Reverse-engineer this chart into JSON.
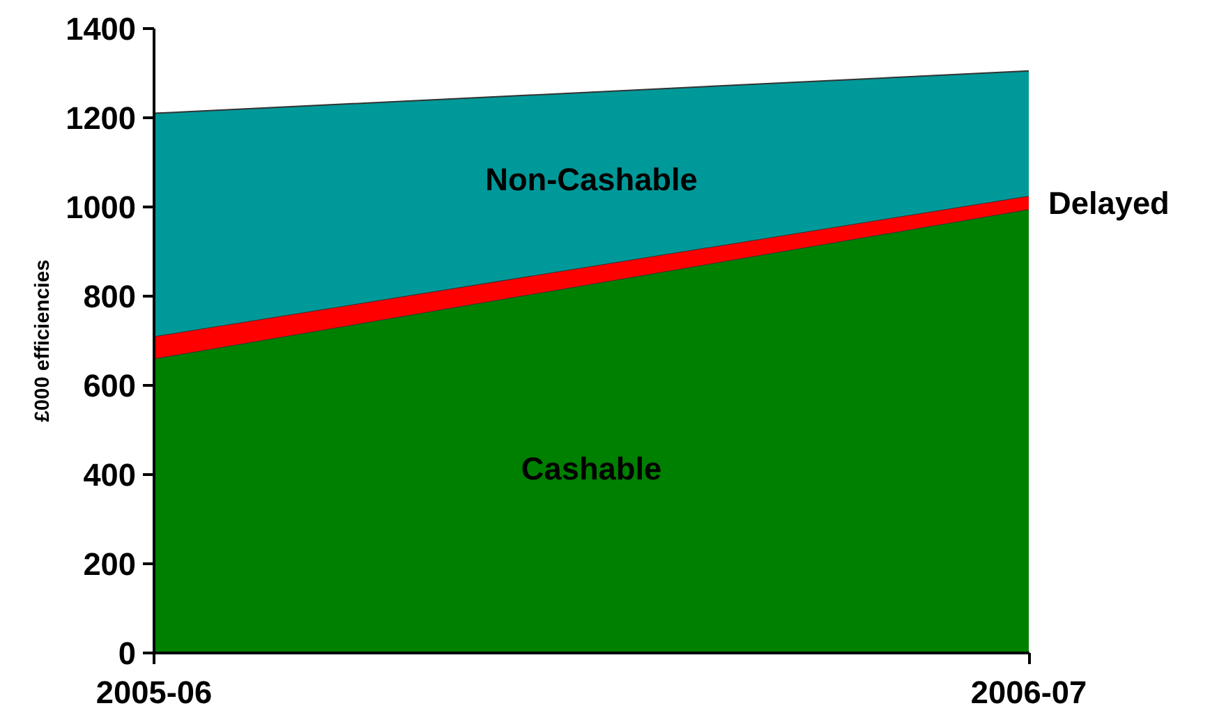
{
  "chart_data": {
    "type": "area",
    "stacked": true,
    "ylabel": "£000 efficiencies",
    "categories": [
      "2005-06",
      "2006-07"
    ],
    "series": [
      {
        "name": "Cashable",
        "color": "#008000",
        "values": [
          660,
          995
        ]
      },
      {
        "name": "Delayed",
        "color": "#ff0000",
        "values": [
          50,
          30
        ]
      },
      {
        "name": "Non-Cashable",
        "color": "#009999",
        "values": [
          500,
          280
        ]
      }
    ],
    "ylim": [
      0,
      1400
    ],
    "yticks": [
      0,
      200,
      400,
      600,
      800,
      1000,
      1200,
      1400
    ],
    "grid": false,
    "legend": false
  }
}
